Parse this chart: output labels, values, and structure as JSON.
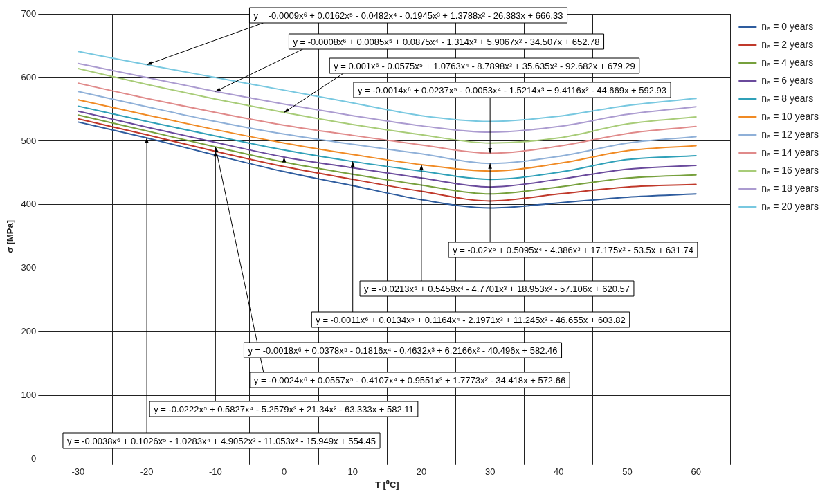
{
  "chart_data": {
    "type": "line",
    "xlabel": "T [⁰C]",
    "ylabel": "σ [MPa]",
    "categories": [
      "-30",
      "-20",
      "-10",
      "0",
      "10",
      "20",
      "30",
      "40",
      "50",
      "60"
    ],
    "ylim": [
      0,
      700
    ],
    "yticks": [
      0,
      100,
      200,
      300,
      400,
      500,
      600,
      700
    ],
    "grid": true,
    "legend": "right",
    "marker": "none",
    "line_style": "solid",
    "series": [
      {
        "name": "nₐ = 0 years",
        "color": "#2e5c9e",
        "values": [
          530,
          505,
          478,
          452,
          430,
          408,
          395,
          403,
          412,
          417
        ]
      },
      {
        "name": "nₐ = 2 years",
        "color": "#c0392b",
        "values": [
          535,
          510,
          484,
          460,
          440,
          421,
          406,
          417,
          428,
          432
        ]
      },
      {
        "name": "nₐ = 4 years",
        "color": "#76a03c",
        "values": [
          541,
          516,
          491,
          467,
          448,
          431,
          417,
          428,
          442,
          447
        ]
      },
      {
        "name": "nₐ = 6 years",
        "color": "#6a4a9c",
        "values": [
          547,
          522,
          498,
          475,
          458,
          442,
          428,
          440,
          456,
          462
        ]
      },
      {
        "name": "nₐ = 8 years",
        "color": "#2fa0b8",
        "values": [
          555,
          531,
          508,
          486,
          468,
          453,
          440,
          451,
          471,
          477
        ]
      },
      {
        "name": "nₐ = 10 years",
        "color": "#f08a24",
        "values": [
          565,
          541,
          518,
          497,
          479,
          463,
          453,
          465,
          485,
          493
        ]
      },
      {
        "name": "nₐ = 12 years",
        "color": "#8fb0d8",
        "values": [
          578,
          554,
          531,
          511,
          495,
          480,
          465,
          476,
          497,
          507
        ]
      },
      {
        "name": "nₐ = 14 years",
        "color": "#e08a8a",
        "values": [
          591,
          567,
          545,
          525,
          509,
          494,
          481,
          492,
          512,
          523
        ]
      },
      {
        "name": "nₐ = 16 years",
        "color": "#a8cc78",
        "values": [
          614,
          589,
          566,
          545,
          526,
          510,
          497,
          505,
          527,
          538
        ]
      },
      {
        "name": "nₐ = 18 years",
        "color": "#ab9bd0",
        "values": [
          622,
          600,
          578,
          558,
          540,
          524,
          514,
          523,
          542,
          554
        ]
      },
      {
        "name": "nₐ = 20 years",
        "color": "#78c8e0",
        "values": [
          641,
          620,
          600,
          580,
          560,
          540,
          531,
          539,
          556,
          567
        ]
      }
    ],
    "annotations": [
      {
        "text": "y = -0.0009x⁶ + 0.0162x⁵ - 0.0482x⁴ - 0.1945x³ + 1.3788x² - 26.383x + 666.33",
        "x": "-20",
        "y": 620
      },
      {
        "text": "y = -0.0008x⁶ + 0.0085x⁵ + 0.0875x⁴ - 1.314x³ + 5.9067x² - 34.507x + 652.78",
        "x": "-10",
        "y": 578
      },
      {
        "text": "y = 0.001x⁶ - 0.0575x⁵ + 1.0763x⁴ - 8.7898x³ + 35.635x² - 92.682x + 679.29",
        "x": "0",
        "y": 545
      },
      {
        "text": "y = -0.0014x⁶ + 0.0237x⁵ - 0.0053x⁴ - 1.5214x³ + 9.4116x² - 44.669x + 592.93",
        "x": "30",
        "y": 481
      },
      {
        "text": "y = -0.02x⁵ + 0.5095x⁴ - 4.386x³ + 17.175x² - 53.5x + 631.74",
        "x": "30",
        "y": 465
      },
      {
        "text": "y = -0.0213x⁵ + 0.5459x⁴ - 4.7701x³ + 18.953x² - 57.106x + 620.57",
        "x": "20",
        "y": 463
      },
      {
        "text": "y = -0.0011x⁶ + 0.0134x⁵ + 0.1164x⁴ - 2.1971x³ + 11.245x² - 46.655x + 603.82",
        "x": "10",
        "y": 468
      },
      {
        "text": "y = -0.0018x⁶ + 0.0378x⁵ - 0.1816x⁴ - 0.4632x³ + 6.2166x² - 40.496x + 582.46",
        "x": "0",
        "y": 475
      },
      {
        "text": "y = -0.0024x⁶ + 0.0557x⁵ - 0.4107x⁴ + 0.9551x³ + 1.7773x² - 34.418x + 572.66",
        "x": "-10",
        "y": 491
      },
      {
        "text": "y = -0.0222x⁵ + 0.5827x⁴ - 5.2579x³ + 21.34x² - 63.333x + 582.11",
        "x": "-10",
        "y": 484
      },
      {
        "text": "y = -0.0038x⁶ + 0.1026x⁵ - 1.0283x⁴ + 4.9052x³ - 11.053x² - 15.949x + 554.45",
        "x": "-20",
        "y": 505
      }
    ]
  }
}
